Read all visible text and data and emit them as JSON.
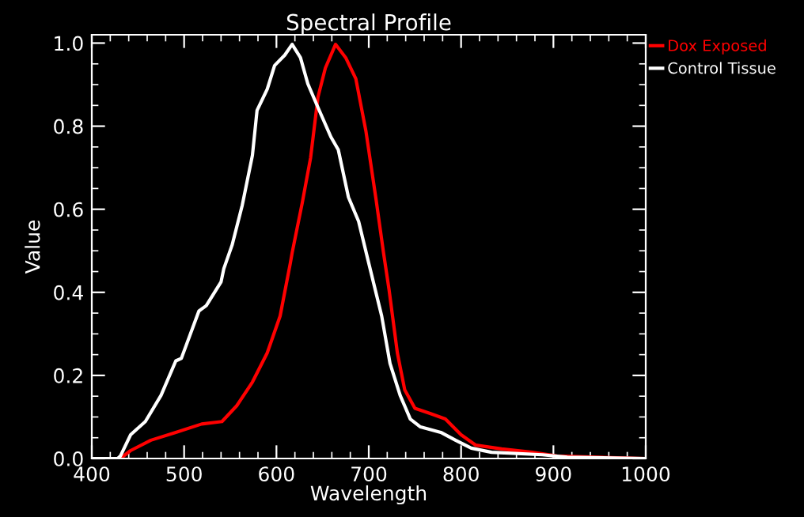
{
  "chart_data": {
    "type": "line",
    "title": "Spectral Profile",
    "xlabel": "Wavelength",
    "ylabel": "Value",
    "xlim": [
      400,
      1000
    ],
    "ylim": [
      0,
      1.02
    ],
    "xticks": [
      400,
      500,
      600,
      700,
      800,
      900,
      1000
    ],
    "yticks": [
      {
        "value": 0,
        "label": "0.0"
      },
      {
        "value": 0.2,
        "label": "0.2"
      },
      {
        "value": 0.4,
        "label": "0.4"
      },
      {
        "value": 0.6,
        "label": "0.6"
      },
      {
        "value": 0.8,
        "label": "0.8"
      },
      {
        "value": 1.0,
        "label": "1.0"
      }
    ],
    "grid": false,
    "legend": "right",
    "marker": "none",
    "line_style": "solid",
    "series": [
      {
        "name": "Dox Exposed",
        "color": "#ff0000",
        "x": [
          400,
          431,
          442,
          464,
          491,
          519,
          541,
          557,
          574,
          590,
          604,
          615,
          617,
          628,
          637,
          645,
          653,
          664,
          675,
          686,
          697,
          708,
          716,
          722,
          731,
          739,
          750,
          767,
          783,
          800,
          816,
          844,
          877,
          904,
          1000
        ],
        "values": [
          0,
          0,
          0.019,
          0.044,
          0.063,
          0.083,
          0.089,
          0.127,
          0.184,
          0.254,
          0.343,
          0.47,
          0.495,
          0.616,
          0.724,
          0.87,
          0.94,
          0.997,
          0.965,
          0.914,
          0.787,
          0.622,
          0.495,
          0.406,
          0.254,
          0.165,
          0.121,
          0.108,
          0.095,
          0.057,
          0.032,
          0.023,
          0.015,
          0.006,
          0
        ]
      },
      {
        "name": "Control Tissue",
        "color": "#ffffff",
        "x": [
          400,
          428,
          431,
          442,
          458,
          475,
          491,
          497,
          516,
          524,
          540,
          543,
          552,
          563,
          574,
          579,
          590,
          598,
          609,
          617,
          626,
          634,
          645,
          659,
          667,
          678,
          689,
          700,
          714,
          723,
          734,
          745,
          756,
          778,
          794,
          811,
          833,
          888,
          915,
          1000
        ],
        "values": [
          0,
          0,
          0.006,
          0.057,
          0.089,
          0.152,
          0.235,
          0.241,
          0.355,
          0.368,
          0.425,
          0.457,
          0.514,
          0.61,
          0.73,
          0.838,
          0.889,
          0.946,
          0.971,
          0.997,
          0.965,
          0.902,
          0.845,
          0.774,
          0.743,
          0.629,
          0.571,
          0.47,
          0.343,
          0.229,
          0.152,
          0.095,
          0.076,
          0.063,
          0.044,
          0.025,
          0.015,
          0.009,
          0.003,
          0
        ]
      }
    ]
  }
}
